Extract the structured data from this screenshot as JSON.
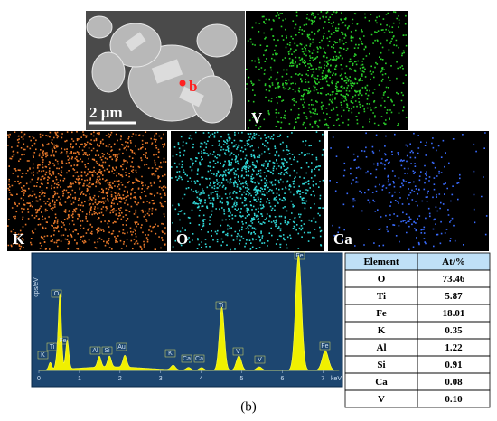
{
  "figure": {
    "sem": {
      "scale_bar": "2 µm",
      "point_label": "b"
    },
    "maps": [
      "V",
      "K",
      "O",
      "Ca"
    ],
    "spectrum": {
      "y_axis_label": "cps/eV",
      "x_unit": "keV",
      "x_tick_labels": [
        "0",
        "1",
        "2",
        "3",
        "4",
        "5",
        "6",
        "7"
      ],
      "peak_labels": [
        "K",
        "Ti",
        "O",
        "Fe",
        "Al",
        "Si",
        "Au",
        "K",
        "Ca",
        "Ca",
        "Ti",
        "V",
        "V",
        "Fe",
        "Fe"
      ]
    },
    "table": {
      "header": [
        "Element",
        "At/%"
      ],
      "rows": [
        [
          "O",
          "73.46"
        ],
        [
          "Ti",
          "5.87"
        ],
        [
          "Fe",
          "18.01"
        ],
        [
          "K",
          "0.35"
        ],
        [
          "Al",
          "1.22"
        ],
        [
          "Si",
          "0.91"
        ],
        [
          "Ca",
          "0.08"
        ],
        [
          "V",
          "0.10"
        ]
      ]
    },
    "caption": "(b)"
  }
}
